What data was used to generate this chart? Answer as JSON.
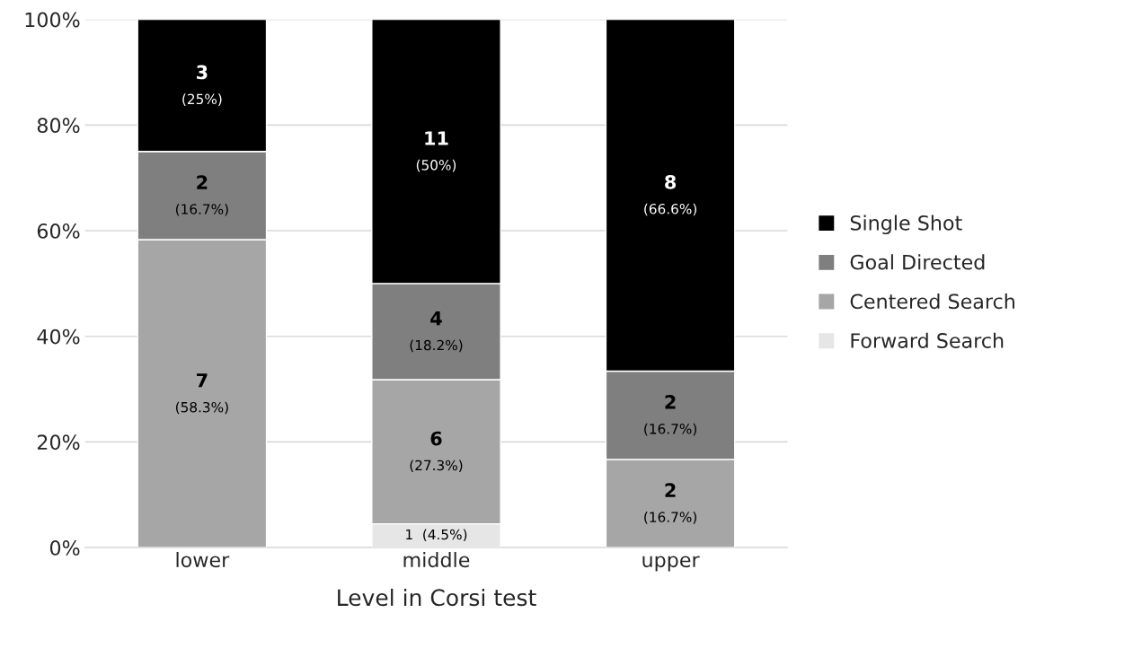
{
  "chart_data": {
    "type": "bar",
    "stacked": true,
    "xlabel": "Level in Corsi test",
    "categories": [
      "lower",
      "middle",
      "upper"
    ],
    "series": [
      {
        "name": "Forward Search",
        "color": "#e6e6e6",
        "values": [
          0,
          4.5,
          0
        ],
        "value_labels": [
          null,
          "1  (4.5%)",
          null
        ]
      },
      {
        "name": "Centered Search",
        "color": "#a6a6a6",
        "values": [
          58.3,
          27.3,
          16.7
        ],
        "value_labels": [
          "7\n(58.3%)",
          "6\n(27.3%)",
          "2\n(16.7%)"
        ]
      },
      {
        "name": "Goal Directed",
        "color": "#7f7f7f",
        "values": [
          16.7,
          18.2,
          16.7
        ],
        "value_labels": [
          "2\n(16.7%)",
          "4\n(18.2%)",
          "2\n(16.7%)"
        ]
      },
      {
        "name": "Single Shot",
        "color": "#000000",
        "values": [
          25,
          50,
          66.6
        ],
        "value_labels": [
          "3\n(25%)",
          "11\n(50%)",
          "8\n(66.6%)"
        ]
      }
    ],
    "ylim": [
      0,
      100
    ],
    "yticks": [
      {
        "value": 0,
        "label": "0%"
      },
      {
        "value": 20,
        "label": "20%"
      },
      {
        "value": 40,
        "label": "40%"
      },
      {
        "value": 60,
        "label": "60%"
      },
      {
        "value": 80,
        "label": "80%"
      },
      {
        "value": 100,
        "label": "100%"
      }
    ],
    "grid": "y",
    "legend": "right"
  }
}
